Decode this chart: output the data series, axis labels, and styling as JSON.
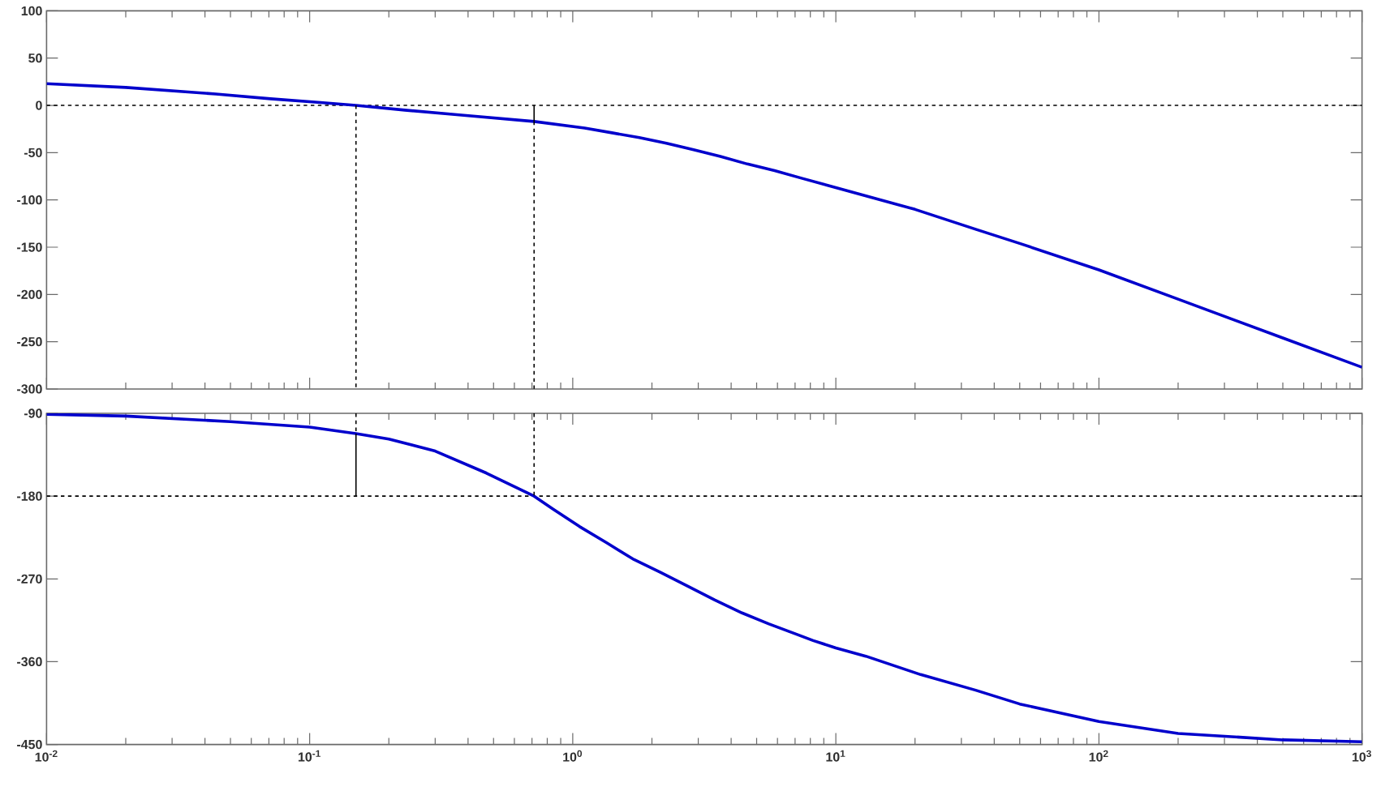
{
  "chart_data": [
    {
      "type": "line",
      "log": "x",
      "xlim": [
        0.01,
        1000
      ],
      "xticks": [
        0.01,
        0.1,
        1,
        10,
        100,
        1000
      ],
      "ylim": [
        -300,
        100
      ],
      "yticks": [
        -300,
        -250,
        -200,
        -150,
        -100,
        -50,
        0,
        50,
        100
      ],
      "tick_labels": "y",
      "series": [
        {
          "color": "#0000cc",
          "line_style": "solid",
          "x": [
            0.01,
            0.02,
            0.044,
            0.071,
            0.11,
            0.15,
            0.23,
            0.37,
            0.713,
            1.11,
            1.41,
            1.79,
            2.27,
            2.88,
            3.64,
            4.61,
            5.85,
            7.41,
            10,
            20,
            34,
            50,
            100,
            200,
            500,
            1000
          ],
          "values": [
            23,
            19,
            12,
            7,
            3,
            0,
            -5,
            -10,
            -17,
            -24,
            -29,
            -34,
            -40,
            -47,
            -54,
            -62,
            -69,
            -77,
            -87,
            -110,
            -131,
            -146,
            -174,
            -205,
            -246,
            -277
          ]
        },
        {
          "color": "#000000",
          "line_style": "dashed",
          "x": [
            0.15,
            0.15
          ],
          "values": [
            0,
            -300
          ]
        },
        {
          "color": "#000000",
          "line_style": "solid",
          "x": [
            0.713,
            0.713
          ],
          "values": [
            0,
            -17
          ]
        },
        {
          "color": "#000000",
          "line_style": "dashed",
          "x": [
            0.713,
            0.713
          ],
          "values": [
            -17,
            -300
          ]
        }
      ],
      "ref_lines": [
        {
          "axis": "y",
          "value": 0,
          "color": "#000000",
          "line_style": "dashed"
        }
      ]
    },
    {
      "type": "line",
      "log": "x",
      "xlim": [
        0.01,
        1000
      ],
      "xticks": [
        {
          "value": 0.01,
          "label": "10$^{-2}$"
        },
        {
          "value": 0.1,
          "label": "10$^{-1}$"
        },
        {
          "value": 1,
          "label": "10$^{0}$"
        },
        {
          "value": 10,
          "label": "10$^{1}$"
        },
        {
          "value": 100,
          "label": "10$^{2}$"
        },
        {
          "value": 1000,
          "label": "10$^{3}$"
        }
      ],
      "ylim": [
        -450,
        -90
      ],
      "yticks": [
        -450,
        -360,
        -270,
        -180,
        -90
      ],
      "series": [
        {
          "color": "#0000cc",
          "line_style": "solid",
          "x": [
            0.01,
            0.02,
            0.05,
            0.1,
            0.15,
            0.2,
            0.3,
            0.47,
            0.713,
            0.84,
            1.06,
            1.35,
            1.71,
            2.16,
            2.74,
            3.47,
            4.4,
            5.57,
            7.06,
            8.2,
            10,
            13,
            21,
            34,
            50,
            100,
            200,
            500,
            1000
          ],
          "values": [
            -91,
            -93,
            -99,
            -105,
            -112,
            -118,
            -131,
            -155,
            -180,
            -194,
            -213,
            -231,
            -249,
            -263,
            -278,
            -293,
            -307,
            -319,
            -330,
            -337,
            -345,
            -354,
            -374,
            -391,
            -406,
            -425,
            -438,
            -445,
            -447
          ]
        },
        {
          "color": "#000000",
          "line_style": "dashed",
          "x": [
            0.15,
            0.15
          ],
          "values": [
            -90,
            -112
          ]
        },
        {
          "color": "#000000",
          "line_style": "solid",
          "x": [
            0.15,
            0.15
          ],
          "values": [
            -112,
            -180
          ]
        },
        {
          "color": "#000000",
          "line_style": "dashed",
          "x": [
            0.713,
            0.713
          ],
          "values": [
            -90,
            -180
          ]
        }
      ],
      "ref_lines": [
        {
          "axis": "y",
          "value": -180,
          "color": "#000000",
          "line_style": "dashed"
        }
      ]
    }
  ]
}
